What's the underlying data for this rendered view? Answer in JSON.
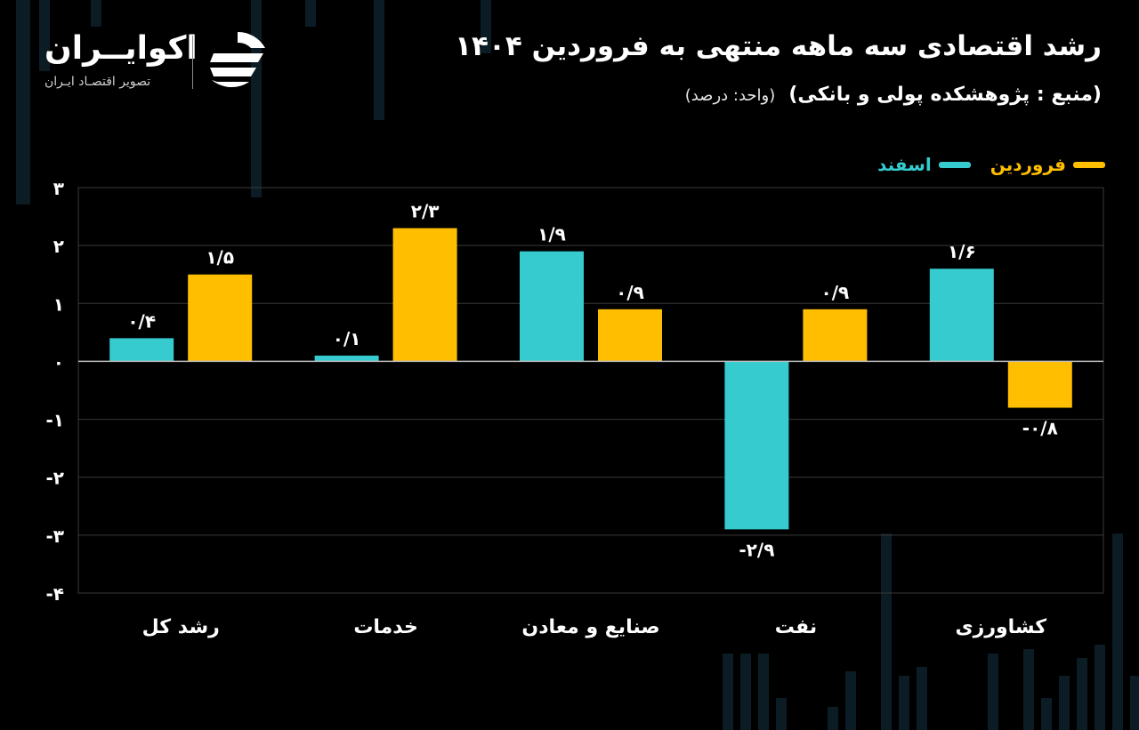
{
  "header": {
    "title": "رشد اقتصادی سه ماهه منتهی به فروردین ۱۴۰۴",
    "source": "(منبع : پژوهشکده پولی و بانکی)",
    "unit": "(واحد: درصد)"
  },
  "brand": {
    "name": "اکوایــران",
    "tagline": "تصویر اقتصـاد ایـران"
  },
  "colors": {
    "background": "#000000",
    "esfand": "#35CBCF",
    "farvardin": "#FFBF00",
    "grid": "#3a3a3a",
    "deco": "#0c1c24"
  },
  "chart_data": {
    "type": "bar",
    "categories": [
      "رشد کل",
      "خدمات",
      "صنایع و معادن",
      "نفت",
      "کشاورزی"
    ],
    "series": [
      {
        "name": "اسفند",
        "color": "#35CBCF",
        "values": [
          0.4,
          0.1,
          1.9,
          -2.9,
          1.6
        ],
        "labels": [
          "۰/۴",
          "۰/۱",
          "۱/۹",
          "-۲/۹",
          "۱/۶"
        ]
      },
      {
        "name": "فروردین",
        "color": "#FFBF00",
        "values": [
          1.5,
          2.3,
          0.9,
          0.9,
          -0.8
        ],
        "labels": [
          "۱/۵",
          "۲/۳",
          "۰/۹",
          "۰/۹",
          "-۰/۸"
        ]
      }
    ],
    "ylim": [
      -4,
      3
    ],
    "yticks": [
      3,
      2,
      1,
      0,
      -1,
      -2,
      -3,
      -4
    ],
    "ytick_labels": [
      "۳",
      "۲",
      "۱",
      "۰",
      "-۱",
      "-۲",
      "-۳",
      "-۴"
    ],
    "grid": true,
    "legend": "top-right"
  }
}
